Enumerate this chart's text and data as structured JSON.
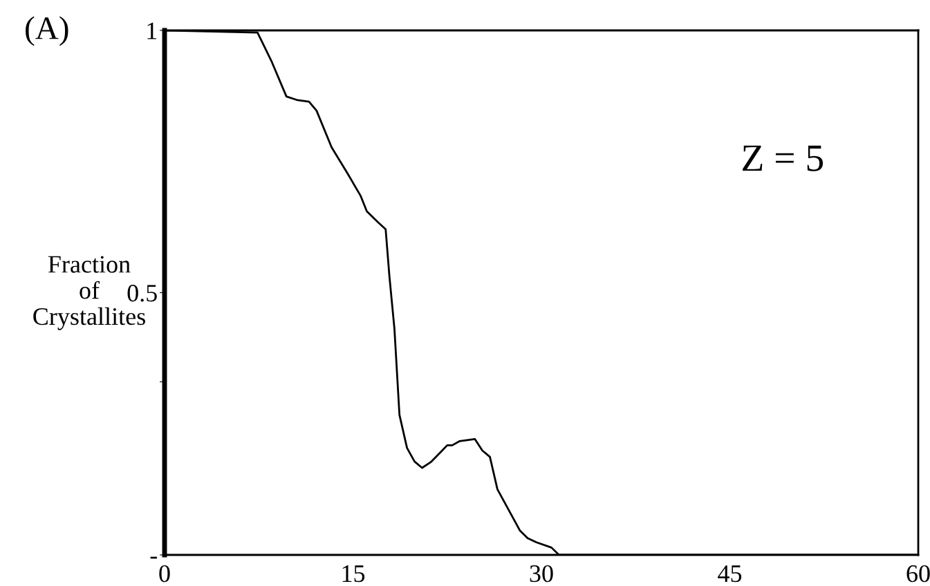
{
  "chart_data": {
    "type": "line",
    "title": "(A)",
    "ylabel": "Fraction\nof\nCrystallites",
    "annotations": [
      "Z = 5"
    ],
    "x": [
      0,
      7.4,
      8.5,
      9.7,
      10.6,
      11.5,
      12.1,
      13.3,
      14.5,
      15.6,
      16.1,
      17.0,
      17.6,
      17.9,
      18.3,
      18.7,
      19.3,
      19.9,
      20.5,
      21.2,
      22.1,
      22.5,
      22.9,
      23.5,
      24.7,
      25.3,
      25.9,
      26.5,
      28.3,
      28.9,
      29.6,
      30.8,
      31.4,
      60
    ],
    "series": [
      {
        "color": "#000000",
        "values": [
          1,
          0.996,
          0.942,
          0.874,
          0.867,
          0.864,
          0.847,
          0.777,
          0.73,
          0.685,
          0.655,
          0.634,
          0.621,
          0.531,
          0.431,
          0.267,
          0.204,
          0.178,
          0.166,
          0.177,
          0.199,
          0.209,
          0.209,
          0.217,
          0.221,
          0.199,
          0.187,
          0.125,
          0.046,
          0.032,
          0.024,
          0.014,
          0,
          0
        ]
      }
    ],
    "xlim": [
      0,
      60
    ],
    "xticks": [
      0,
      15,
      30,
      45,
      60
    ],
    "ylim": [
      0,
      1
    ],
    "yticks": [
      {
        "value": 0,
        "label": "-"
      },
      {
        "value": 0.33,
        "label": null
      },
      0.5,
      1
    ],
    "grid": false,
    "legend": false,
    "marker": "none",
    "line_style": "solid"
  }
}
